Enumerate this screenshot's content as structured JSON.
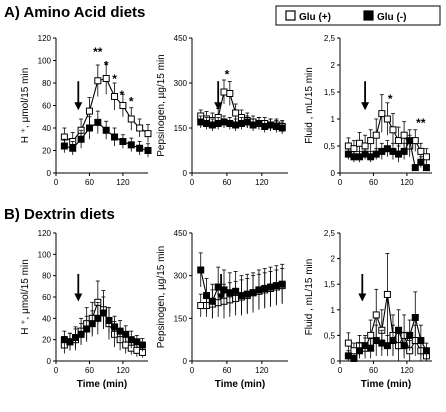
{
  "sections": [
    {
      "title": "A) Amino Acid diets"
    },
    {
      "title": "B) Dextrin diets"
    }
  ],
  "legend": {
    "items": [
      {
        "label": "Glu (+)",
        "marker": "open-square"
      },
      {
        "label": "Glu (-)",
        "marker": "filled-square"
      }
    ]
  },
  "colors": {
    "glu_plus_fill": "#ffffff",
    "glu_minus_fill": "#000000",
    "stroke": "#000000"
  },
  "chart_data": [
    {
      "panel": "A-H",
      "type": "line",
      "ylabel": "H ⁺, μmol/15 min",
      "xlabel": "",
      "ylim": [
        0,
        120
      ],
      "yticks": [
        "0",
        "20",
        "40",
        "60",
        "80",
        "100",
        "120"
      ],
      "xlim": [
        0,
        165
      ],
      "xticks": [
        "0",
        "60",
        "120"
      ],
      "xtick_values": [
        0,
        60,
        120
      ],
      "arrow_x": 40,
      "annotations": [
        {
          "text": "**",
          "x": 75,
          "y": 104
        },
        {
          "text": "*",
          "x": 90,
          "y": 92
        },
        {
          "text": "*",
          "x": 105,
          "y": 80
        },
        {
          "text": "*",
          "x": 118,
          "y": 66
        },
        {
          "text": "*",
          "x": 135,
          "y": 60
        }
      ],
      "x": [
        15,
        30,
        45,
        60,
        75,
        90,
        105,
        120,
        135,
        150,
        165
      ],
      "series": [
        {
          "name": "Glu (+)",
          "marker": "open",
          "y": [
            32,
            28,
            38,
            55,
            82,
            84,
            68,
            60,
            48,
            40,
            35
          ],
          "err": [
            8,
            8,
            10,
            12,
            14,
            14,
            12,
            10,
            10,
            8,
            8
          ]
        },
        {
          "name": "Glu (-)",
          "marker": "filled",
          "y": [
            24,
            22,
            30,
            40,
            45,
            38,
            32,
            28,
            25,
            22,
            20
          ],
          "err": [
            6,
            6,
            8,
            10,
            10,
            8,
            8,
            6,
            6,
            6,
            6
          ]
        }
      ]
    },
    {
      "panel": "A-P",
      "type": "line",
      "ylabel": "Pepsinogen, µg/15 min",
      "xlabel": "",
      "ylim": [
        0,
        450
      ],
      "yticks": [
        "0",
        "150",
        "300",
        "450"
      ],
      "xlim": [
        0,
        165
      ],
      "xticks": [
        "0",
        "60",
        "120"
      ],
      "xtick_values": [
        0,
        60,
        120
      ],
      "arrow_x": 45,
      "annotations": [
        {
          "text": "*",
          "x": 60,
          "y": 315
        }
      ],
      "x": [
        15,
        25,
        35,
        45,
        55,
        65,
        75,
        85,
        95,
        105,
        115,
        125,
        135,
        145,
        155
      ],
      "series": [
        {
          "name": "Glu (+)",
          "marker": "open",
          "y": [
            190,
            180,
            175,
            185,
            270,
            265,
            200,
            185,
            175,
            170,
            165,
            165,
            160,
            160,
            155
          ],
          "err": [
            20,
            25,
            25,
            30,
            40,
            40,
            30,
            25,
            25,
            20,
            20,
            20,
            20,
            20,
            20
          ]
        },
        {
          "name": "Glu (-)",
          "marker": "filled",
          "y": [
            170,
            165,
            160,
            165,
            170,
            165,
            160,
            165,
            170,
            160,
            165,
            155,
            160,
            155,
            150
          ],
          "err": [
            20,
            20,
            20,
            20,
            20,
            20,
            20,
            20,
            20,
            20,
            20,
            20,
            20,
            20,
            20
          ]
        }
      ]
    },
    {
      "panel": "A-F",
      "type": "line",
      "ylabel": "Fluid , mL/15 min",
      "xlabel": "",
      "ylim": [
        0,
        2.5
      ],
      "yticks": [
        "0",
        "0,5",
        "1",
        "1,5",
        "2",
        "2,5"
      ],
      "xlim": [
        0,
        165
      ],
      "xticks": [
        "0",
        "60",
        "120"
      ],
      "xtick_values": [
        0,
        60,
        120
      ],
      "arrow_x": 45,
      "annotations": [
        {
          "text": "*",
          "x": 90,
          "y": 1.3
        },
        {
          "text": "**",
          "x": 145,
          "y": 0.85
        }
      ],
      "x": [
        15,
        25,
        35,
        45,
        55,
        65,
        75,
        85,
        95,
        105,
        115,
        125,
        135,
        145,
        155
      ],
      "series": [
        {
          "name": "Glu (+)",
          "marker": "open",
          "y": [
            0.5,
            0.45,
            0.55,
            0.5,
            0.6,
            0.7,
            1.1,
            1.0,
            0.8,
            0.6,
            0.7,
            0.5,
            0.6,
            0.4,
            0.3
          ],
          "err": [
            0.15,
            0.15,
            0.2,
            0.2,
            0.2,
            0.3,
            0.35,
            0.3,
            0.3,
            0.25,
            0.25,
            0.2,
            0.2,
            0.15,
            0.15
          ]
        },
        {
          "name": "Glu (-)",
          "marker": "filled",
          "y": [
            0.35,
            0.3,
            0.3,
            0.35,
            0.3,
            0.35,
            0.4,
            0.45,
            0.4,
            0.35,
            0.4,
            0.6,
            0.1,
            0.2,
            0.1
          ],
          "err": [
            0.1,
            0.1,
            0.1,
            0.1,
            0.1,
            0.1,
            0.15,
            0.15,
            0.15,
            0.15,
            0.15,
            0.2,
            0.05,
            0.1,
            0.05
          ]
        }
      ]
    },
    {
      "panel": "B-H",
      "type": "line",
      "ylabel": "H ⁺, μmol/15 min",
      "xlabel": "Time (min)",
      "ylim": [
        0,
        120
      ],
      "yticks": [
        "0",
        "20",
        "40",
        "60",
        "80",
        "100",
        "120"
      ],
      "xlim": [
        0,
        165
      ],
      "xticks": [
        "0",
        "60",
        "120"
      ],
      "xtick_values": [
        0,
        60,
        120
      ],
      "arrow_x": 40,
      "annotations": [],
      "x": [
        15,
        25,
        35,
        45,
        55,
        65,
        75,
        85,
        95,
        105,
        115,
        125,
        135,
        145,
        155
      ],
      "series": [
        {
          "name": "Glu (+)",
          "marker": "open",
          "y": [
            15,
            18,
            20,
            28,
            35,
            40,
            55,
            48,
            35,
            25,
            20,
            15,
            12,
            10,
            8
          ],
          "err": [
            8,
            8,
            10,
            12,
            15,
            15,
            20,
            18,
            15,
            12,
            10,
            8,
            6,
            6,
            5
          ]
        },
        {
          "name": "Glu (-)",
          "marker": "filled",
          "y": [
            20,
            18,
            22,
            25,
            30,
            35,
            40,
            45,
            38,
            32,
            28,
            25,
            20,
            18,
            15
          ],
          "err": [
            8,
            8,
            10,
            10,
            12,
            12,
            15,
            15,
            12,
            10,
            10,
            8,
            8,
            6,
            6
          ]
        }
      ]
    },
    {
      "panel": "B-P",
      "type": "line",
      "ylabel": "Pepsinogen, µg/15 min",
      "xlabel": "Time (min)",
      "ylim": [
        0,
        450
      ],
      "yticks": [
        "0",
        "150",
        "300",
        "450"
      ],
      "xlim": [
        0,
        165
      ],
      "xticks": [
        "0",
        "60",
        "120"
      ],
      "xtick_values": [
        0,
        60,
        120
      ],
      "arrow_x": 50,
      "annotations": [],
      "x": [
        15,
        25,
        35,
        45,
        55,
        65,
        75,
        85,
        95,
        105,
        115,
        125,
        135,
        145,
        155
      ],
      "series": [
        {
          "name": "Glu (+)",
          "marker": "open",
          "y": [
            195,
            195,
            200,
            205,
            210,
            215,
            220,
            225,
            230,
            240,
            245,
            250,
            255,
            260,
            265
          ],
          "err": [
            40,
            40,
            50,
            50,
            60,
            60,
            60,
            60,
            60,
            60,
            60,
            60,
            60,
            60,
            60
          ]
        },
        {
          "name": "Glu (-)",
          "marker": "filled",
          "y": [
            320,
            230,
            210,
            260,
            250,
            240,
            245,
            230,
            235,
            240,
            250,
            255,
            260,
            265,
            270
          ],
          "err": [
            60,
            60,
            60,
            70,
            70,
            70,
            70,
            70,
            70,
            70,
            70,
            70,
            70,
            70,
            70
          ]
        }
      ]
    },
    {
      "panel": "B-F",
      "type": "line",
      "ylabel": "Fluid , mL/15 min",
      "xlabel": "Time (min)",
      "ylim": [
        0,
        2.5
      ],
      "yticks": [
        "0",
        "0,5",
        "1",
        "1,5",
        "2",
        "2,5"
      ],
      "xlim": [
        0,
        165
      ],
      "xticks": [
        "0",
        "60",
        "120"
      ],
      "xtick_values": [
        0,
        60,
        120
      ],
      "arrow_x": 40,
      "annotations": [],
      "x": [
        15,
        25,
        35,
        45,
        55,
        65,
        75,
        85,
        95,
        105,
        115,
        125,
        135,
        145,
        155
      ],
      "series": [
        {
          "name": "Glu (+)",
          "marker": "open",
          "y": [
            0.35,
            0.2,
            0.3,
            0.25,
            0.5,
            0.9,
            0.6,
            1.3,
            0.5,
            0.3,
            0.5,
            0.2,
            0.4,
            0.2,
            0.1
          ],
          "err": [
            0.2,
            0.15,
            0.2,
            0.2,
            0.3,
            0.5,
            0.4,
            0.8,
            0.4,
            0.3,
            0.4,
            0.2,
            0.3,
            0.2,
            0.1
          ]
        },
        {
          "name": "Glu (-)",
          "marker": "filled",
          "y": [
            0.1,
            0.05,
            0.2,
            0.3,
            0.25,
            0.4,
            0.35,
            0.3,
            0.4,
            0.6,
            0.3,
            0.5,
            0.85,
            0.4,
            0.2
          ],
          "err": [
            0.1,
            0.05,
            0.15,
            0.2,
            0.2,
            0.3,
            0.25,
            0.2,
            0.3,
            0.4,
            0.25,
            0.3,
            0.5,
            0.3,
            0.15
          ]
        }
      ]
    }
  ]
}
